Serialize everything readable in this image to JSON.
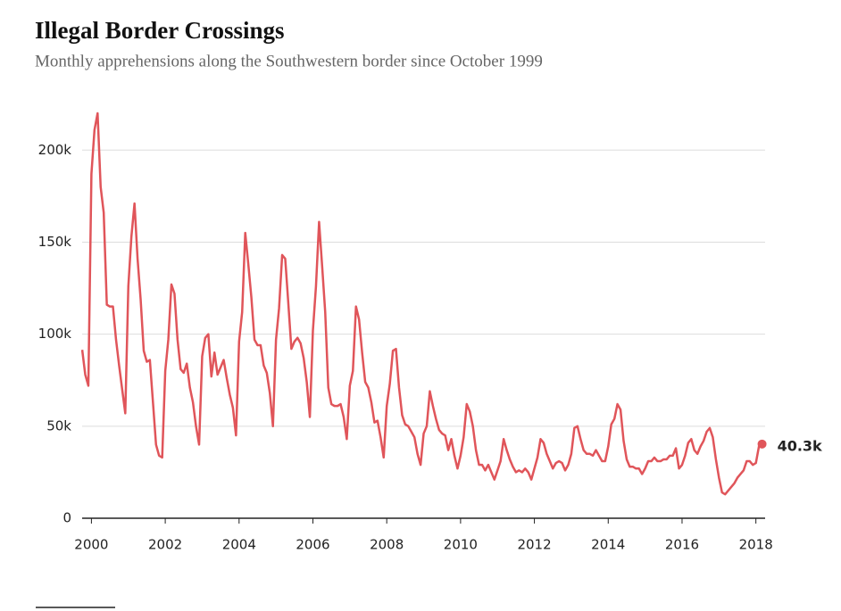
{
  "chart_data": {
    "type": "line",
    "title": "Illegal Border Crossings",
    "subtitle": "Monthly apprehensions along the Southwestern border since October 1999",
    "xlim": [
      1999.7,
      2018.25
    ],
    "xticks": [
      2000,
      2002,
      2004,
      2006,
      2008,
      2010,
      2012,
      2014,
      2016,
      2018
    ],
    "ylim": [
      0,
      220000
    ],
    "yticks": [
      {
        "value": 0,
        "label": "0"
      },
      {
        "value": 50000,
        "label": "50k"
      },
      {
        "value": 100000,
        "label": "100k"
      },
      {
        "value": 150000,
        "label": "150k"
      },
      {
        "value": 200000,
        "label": "200k"
      }
    ],
    "grid": true,
    "x": [
      1999.75,
      1999.833,
      1999.917,
      2000,
      2000.083,
      2000.167,
      2000.25,
      2000.333,
      2000.417,
      2000.5,
      2000.583,
      2000.667,
      2000.75,
      2000.833,
      2000.917,
      2001,
      2001.083,
      2001.167,
      2001.25,
      2001.333,
      2001.417,
      2001.5,
      2001.583,
      2001.667,
      2001.75,
      2001.833,
      2001.917,
      2002,
      2002.083,
      2002.167,
      2002.25,
      2002.333,
      2002.417,
      2002.5,
      2002.583,
      2002.667,
      2002.75,
      2002.833,
      2002.917,
      2003,
      2003.083,
      2003.167,
      2003.25,
      2003.333,
      2003.417,
      2003.5,
      2003.583,
      2003.667,
      2003.75,
      2003.833,
      2003.917,
      2004,
      2004.083,
      2004.167,
      2004.25,
      2004.333,
      2004.417,
      2004.5,
      2004.583,
      2004.667,
      2004.75,
      2004.833,
      2004.917,
      2005,
      2005.083,
      2005.167,
      2005.25,
      2005.333,
      2005.417,
      2005.5,
      2005.583,
      2005.667,
      2005.75,
      2005.833,
      2005.917,
      2006,
      2006.083,
      2006.167,
      2006.25,
      2006.333,
      2006.417,
      2006.5,
      2006.583,
      2006.667,
      2006.75,
      2006.833,
      2006.917,
      2007,
      2007.083,
      2007.167,
      2007.25,
      2007.333,
      2007.417,
      2007.5,
      2007.583,
      2007.667,
      2007.75,
      2007.833,
      2007.917,
      2008,
      2008.083,
      2008.167,
      2008.25,
      2008.333,
      2008.417,
      2008.5,
      2008.583,
      2008.667,
      2008.75,
      2008.833,
      2008.917,
      2009,
      2009.083,
      2009.167,
      2009.25,
      2009.333,
      2009.417,
      2009.5,
      2009.583,
      2009.667,
      2009.75,
      2009.833,
      2009.917,
      2010,
      2010.083,
      2010.167,
      2010.25,
      2010.333,
      2010.417,
      2010.5,
      2010.583,
      2010.667,
      2010.75,
      2010.833,
      2010.917,
      2011,
      2011.083,
      2011.167,
      2011.25,
      2011.333,
      2011.417,
      2011.5,
      2011.583,
      2011.667,
      2011.75,
      2011.833,
      2011.917,
      2012,
      2012.083,
      2012.167,
      2012.25,
      2012.333,
      2012.417,
      2012.5,
      2012.583,
      2012.667,
      2012.75,
      2012.833,
      2012.917,
      2013,
      2013.083,
      2013.167,
      2013.25,
      2013.333,
      2013.417,
      2013.5,
      2013.583,
      2013.667,
      2013.75,
      2013.833,
      2013.917,
      2014,
      2014.083,
      2014.167,
      2014.25,
      2014.333,
      2014.417,
      2014.5,
      2014.583,
      2014.667,
      2014.75,
      2014.833,
      2014.917,
      2015,
      2015.083,
      2015.167,
      2015.25,
      2015.333,
      2015.417,
      2015.5,
      2015.583,
      2015.667,
      2015.75,
      2015.833,
      2015.917,
      2016,
      2016.083,
      2016.167,
      2016.25,
      2016.333,
      2016.417,
      2016.5,
      2016.583,
      2016.667,
      2016.75,
      2016.833,
      2016.917,
      2017,
      2017.083,
      2017.167,
      2017.25,
      2017.333,
      2017.417,
      2017.5,
      2017.583,
      2017.667,
      2017.75,
      2017.833,
      2017.917,
      2018,
      2018.083,
      2018.167
    ],
    "series": [
      {
        "name": "Apprehensions",
        "color": "#e0555a",
        "end_label": "40.3k",
        "values": [
          91500,
          78000,
          72000,
          187000,
          211000,
          220000,
          180000,
          166000,
          116000,
          115000,
          115000,
          97000,
          83000,
          70000,
          57000,
          126000,
          153000,
          171000,
          141000,
          119000,
          91000,
          85000,
          86000,
          63000,
          40000,
          34000,
          33000,
          80000,
          97000,
          127000,
          122000,
          97000,
          81000,
          79000,
          84000,
          71000,
          63000,
          50000,
          40000,
          88000,
          98000,
          100000,
          77000,
          90000,
          78000,
          82000,
          86000,
          76000,
          67000,
          60000,
          45000,
          96000,
          112000,
          155000,
          138000,
          120000,
          97000,
          94000,
          94000,
          83000,
          79000,
          68000,
          50000,
          97000,
          114000,
          143000,
          141000,
          117000,
          92000,
          96000,
          98000,
          95000,
          87000,
          74000,
          55000,
          102000,
          126000,
          161000,
          137000,
          112000,
          71000,
          62000,
          61000,
          61000,
          62000,
          55000,
          43000,
          72000,
          80000,
          115000,
          108000,
          90000,
          74000,
          71000,
          63000,
          52000,
          53000,
          44000,
          33000,
          61000,
          73000,
          91000,
          92000,
          71000,
          56000,
          51000,
          50000,
          47000,
          44000,
          35000,
          29000,
          46000,
          50000,
          69000,
          61000,
          54000,
          48000,
          46000,
          45000,
          37000,
          43000,
          34000,
          27000,
          34000,
          44000,
          62000,
          58000,
          50000,
          37000,
          29000,
          29000,
          26000,
          29000,
          25000,
          21000,
          26000,
          31000,
          43000,
          37000,
          32000,
          28000,
          25000,
          26000,
          25000,
          27000,
          25000,
          21000,
          27000,
          33000,
          43000,
          41000,
          35000,
          31000,
          27000,
          30000,
          31000,
          30000,
          26000,
          29000,
          35000,
          49000,
          50000,
          43000,
          37000,
          35000,
          35000,
          34000,
          37000,
          34000,
          31000,
          31000,
          39000,
          51000,
          54000,
          62000,
          59000,
          42000,
          32000,
          28000,
          28000,
          27000,
          27000,
          24000,
          27000,
          31000,
          31000,
          33000,
          31000,
          31000,
          32000,
          32000,
          34000,
          34000,
          38000,
          27000,
          29000,
          34000,
          41000,
          43000,
          37000,
          35000,
          39000,
          42000,
          47000,
          49000,
          44000,
          32000,
          22000,
          14000,
          13000,
          15000,
          17000,
          19000,
          22000,
          24000,
          26000,
          31000,
          31000,
          29000,
          30000,
          39000,
          40300
        ]
      }
    ]
  }
}
